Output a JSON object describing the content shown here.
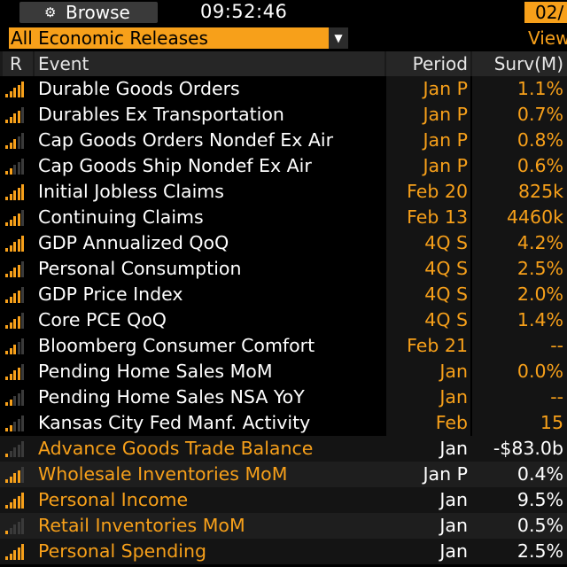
{
  "toolbar": {
    "browse_label": "Browse",
    "browse_icon": "settings-icon",
    "time": "09:52:46",
    "date": "02/"
  },
  "filter": {
    "selected": "All Economic Releases",
    "view_label": "View"
  },
  "columns": {
    "r": "R",
    "event": "Event",
    "period": "Period",
    "surv": "Surv(M)"
  },
  "colors": {
    "accent": "#f7a01a",
    "background": "#000000",
    "row_future": "#141414"
  },
  "rows": [
    {
      "event": "Durable Goods Orders",
      "period": "Jan P",
      "surv": "1.1%",
      "relevance": 5,
      "released": true
    },
    {
      "event": "Durables Ex Transportation",
      "period": "Jan P",
      "surv": "0.7%",
      "relevance": 4,
      "released": true
    },
    {
      "event": "Cap Goods Orders Nondef Ex Air",
      "period": "Jan P",
      "surv": "0.8%",
      "relevance": 3,
      "released": true
    },
    {
      "event": "Cap Goods Ship Nondef Ex Air",
      "period": "Jan P",
      "surv": "0.6%",
      "relevance": 2,
      "released": true
    },
    {
      "event": "Initial Jobless Claims",
      "period": "Feb 20",
      "surv": "825k",
      "relevance": 5,
      "released": true
    },
    {
      "event": "Continuing Claims",
      "period": "Feb 13",
      "surv": "4460k",
      "relevance": 4,
      "released": true
    },
    {
      "event": "GDP Annualized QoQ",
      "period": "4Q S",
      "surv": "4.2%",
      "relevance": 5,
      "released": true
    },
    {
      "event": "Personal Consumption",
      "period": "4Q S",
      "surv": "2.5%",
      "relevance": 4,
      "released": true
    },
    {
      "event": "GDP Price Index",
      "period": "4Q S",
      "surv": "2.0%",
      "relevance": 4,
      "released": true
    },
    {
      "event": "Core PCE QoQ",
      "period": "4Q S",
      "surv": "1.4%",
      "relevance": 4,
      "released": true
    },
    {
      "event": "Bloomberg Consumer Comfort",
      "period": "Feb 21",
      "surv": "--",
      "relevance": 3,
      "released": true
    },
    {
      "event": "Pending Home Sales MoM",
      "period": "Jan",
      "surv": "0.0%",
      "relevance": 4,
      "released": true
    },
    {
      "event": "Pending Home Sales NSA YoY",
      "period": "Jan",
      "surv": "--",
      "relevance": 2,
      "released": true
    },
    {
      "event": "Kansas City Fed Manf. Activity",
      "period": "Feb",
      "surv": "15",
      "relevance": 2,
      "released": true
    },
    {
      "event": "Advance Goods Trade Balance",
      "period": "Jan",
      "surv": "-$83.0b",
      "relevance": 1,
      "released": false
    },
    {
      "event": "Wholesale Inventories MoM",
      "period": "Jan P",
      "surv": "0.4%",
      "relevance": 4,
      "released": false
    },
    {
      "event": "Personal Income",
      "period": "Jan",
      "surv": "9.5%",
      "relevance": 5,
      "released": false
    },
    {
      "event": "Retail Inventories MoM",
      "period": "Jan",
      "surv": "0.5%",
      "relevance": 1,
      "released": false
    },
    {
      "event": "Personal Spending",
      "period": "Jan",
      "surv": "2.5%",
      "relevance": 5,
      "released": false
    }
  ]
}
